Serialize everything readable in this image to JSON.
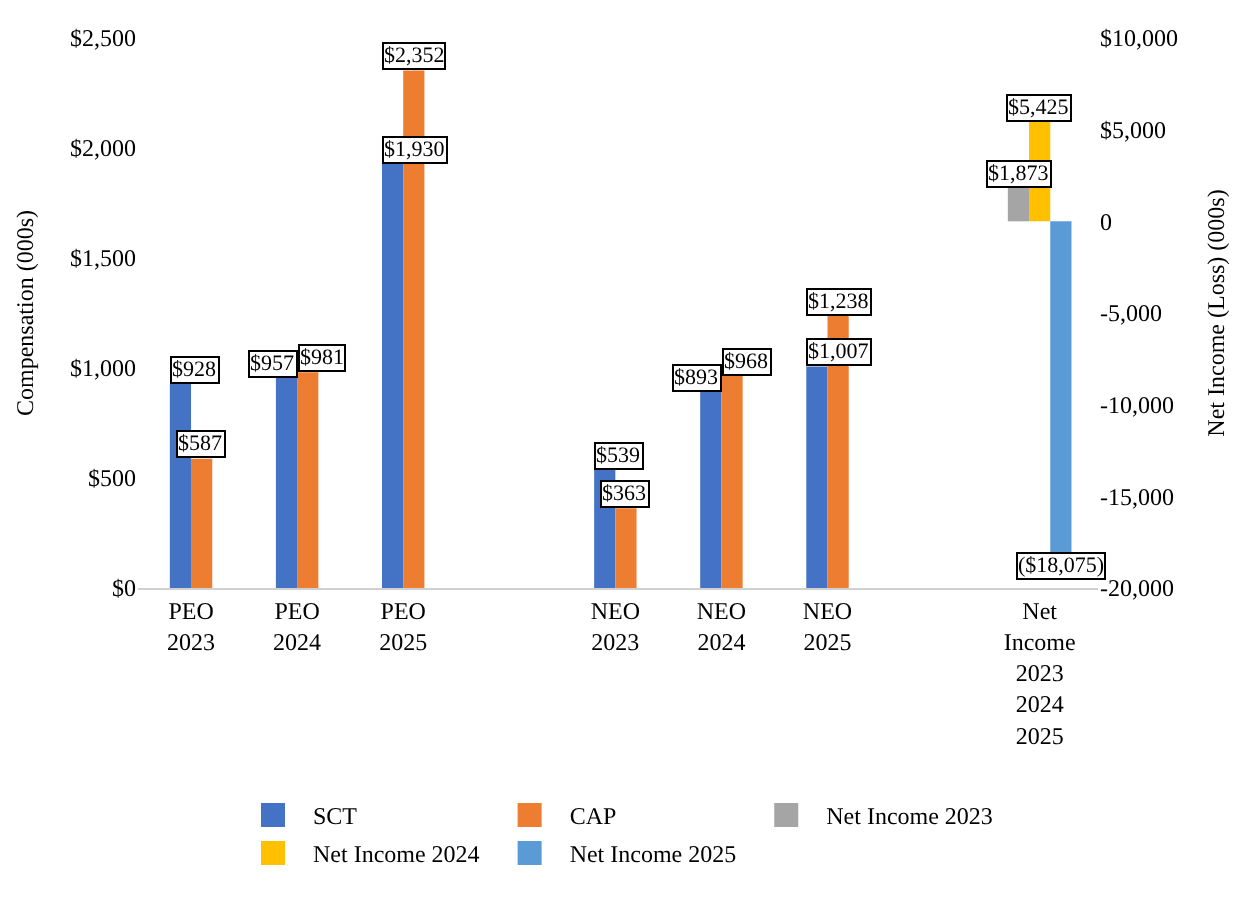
{
  "chart_data": {
    "type": "bar",
    "categories": [
      "PEO 2023",
      "PEO 2024",
      "PEO 2025",
      null,
      "NEO 2023",
      "NEO 2024",
      "NEO 2025",
      null,
      "Net Income 2023 2024 2025"
    ],
    "ylabel": "Compensation (000s)",
    "y2label": "Net Income (Loss) (000s)",
    "ylim": [
      0,
      2500
    ],
    "yticks": [
      {
        "value": 0,
        "label": "$0"
      },
      {
        "value": 500,
        "label": "$500"
      },
      {
        "value": 1000,
        "label": "$1,000"
      },
      {
        "value": 1500,
        "label": "$1,500"
      },
      {
        "value": 2000,
        "label": "$2,000"
      },
      {
        "value": 2500,
        "label": "$2,500"
      }
    ],
    "y2lim": [
      -20000,
      10000
    ],
    "y2ticks": [
      {
        "value": -20000,
        "label": "-20,000"
      },
      {
        "value": -15000,
        "label": "-15,000"
      },
      {
        "value": -10000,
        "label": "-10,000"
      },
      {
        "value": -5000,
        "label": "-5,000"
      },
      {
        "value": 0,
        "label": "0"
      },
      {
        "value": 5000,
        "label": "$5,000"
      },
      {
        "value": 10000,
        "label": "$10,000"
      }
    ],
    "series": [
      {
        "name": "SCT",
        "color": "#4472c4",
        "values": [
          928,
          957,
          1930,
          null,
          539,
          893,
          1007,
          null,
          null
        ],
        "value_labels": [
          "$928",
          "$957",
          "$1,930",
          null,
          "$539",
          "$893",
          "$1,007",
          null,
          null
        ]
      },
      {
        "name": "CAP",
        "color": "#ed7d31",
        "values": [
          587,
          981,
          2352,
          null,
          363,
          968,
          1238,
          null,
          null
        ],
        "value_labels": [
          "$587",
          "$981",
          "$2,352",
          null,
          "$363",
          "$968",
          "$1,238",
          null,
          null
        ]
      },
      {
        "name": "Net Income 2023",
        "color": "#a5a5a5",
        "axis": "y2",
        "values": [
          null,
          null,
          null,
          null,
          null,
          null,
          null,
          null,
          1873
        ],
        "value_labels": [
          null,
          null,
          null,
          null,
          null,
          null,
          null,
          null,
          "$1,873"
        ]
      },
      {
        "name": "Net Income 2024",
        "color": "#ffc000",
        "axis": "y2",
        "values": [
          null,
          null,
          null,
          null,
          null,
          null,
          null,
          null,
          5425
        ],
        "value_labels": [
          null,
          null,
          null,
          null,
          null,
          null,
          null,
          null,
          "$5,425"
        ]
      },
      {
        "name": "Net Income 2025",
        "color": "#5b9bd5",
        "axis": "y2",
        "values": [
          null,
          null,
          null,
          null,
          null,
          null,
          null,
          null,
          -18075
        ],
        "value_labels": [
          null,
          null,
          null,
          null,
          null,
          null,
          null,
          null,
          "($18,075)"
        ]
      }
    ],
    "legend": "bottom"
  }
}
